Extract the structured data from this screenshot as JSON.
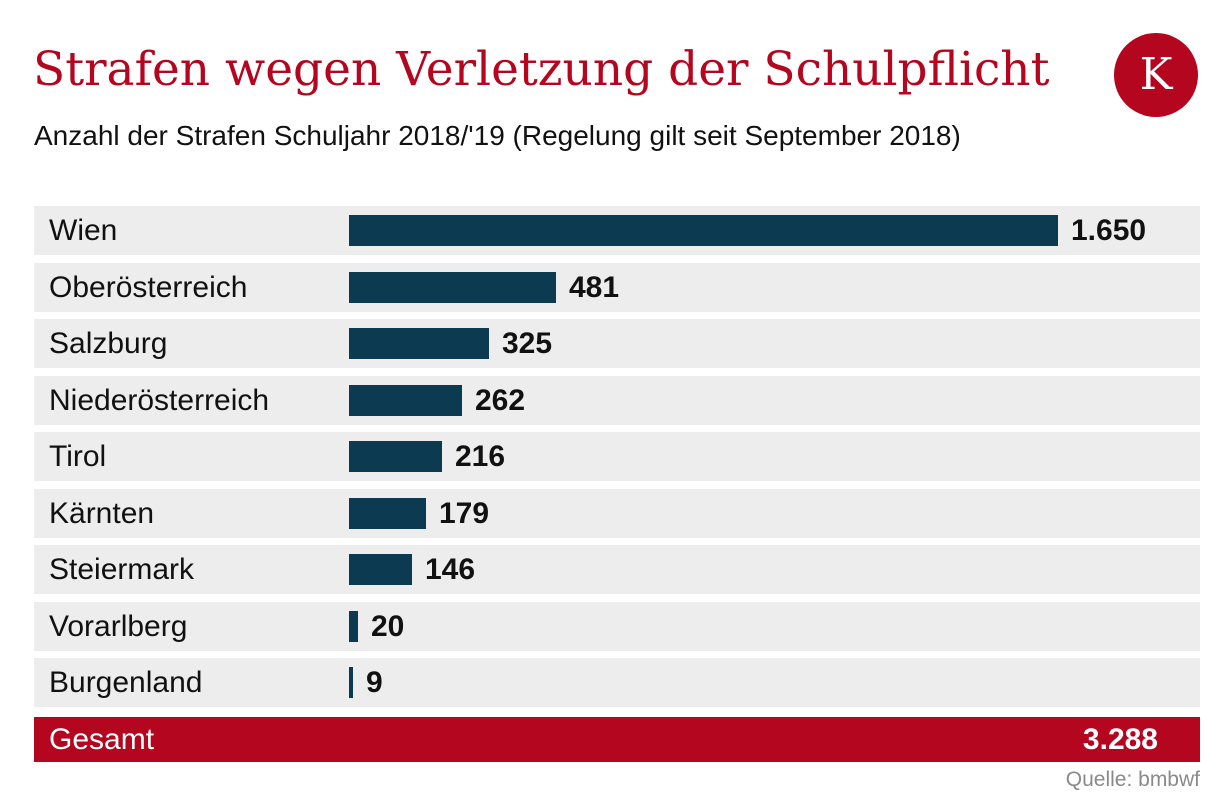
{
  "colors": {
    "accent": "#b5061f",
    "bar": "#0c3a50",
    "row_background": "#ededed",
    "source_text": "#8a8a8a"
  },
  "logo": {
    "letter": "K"
  },
  "chart_data": {
    "type": "bar",
    "orientation": "horizontal",
    "title": "Strafen wegen Verletzung der Schulpflicht",
    "subtitle": "Anzahl der Strafen Schuljahr 2018/'19 (Regelung gilt seit September 2018)",
    "categories": [
      "Wien",
      "Oberösterreich",
      "Salzburg",
      "Niederösterreich",
      "Tirol",
      "Kärnten",
      "Steiermark",
      "Vorarlberg",
      "Burgenland"
    ],
    "values": [
      1650,
      481,
      325,
      262,
      216,
      179,
      146,
      20,
      9
    ],
    "value_labels": [
      "1.650",
      "481",
      "325",
      "262",
      "216",
      "179",
      "146",
      "20",
      "9"
    ],
    "xlim": [
      0,
      1650
    ],
    "grid": false,
    "legend": "none",
    "total": {
      "label": "Gesamt",
      "value": 3288,
      "value_label": "3.288"
    },
    "source": "Quelle: bmbwf"
  }
}
